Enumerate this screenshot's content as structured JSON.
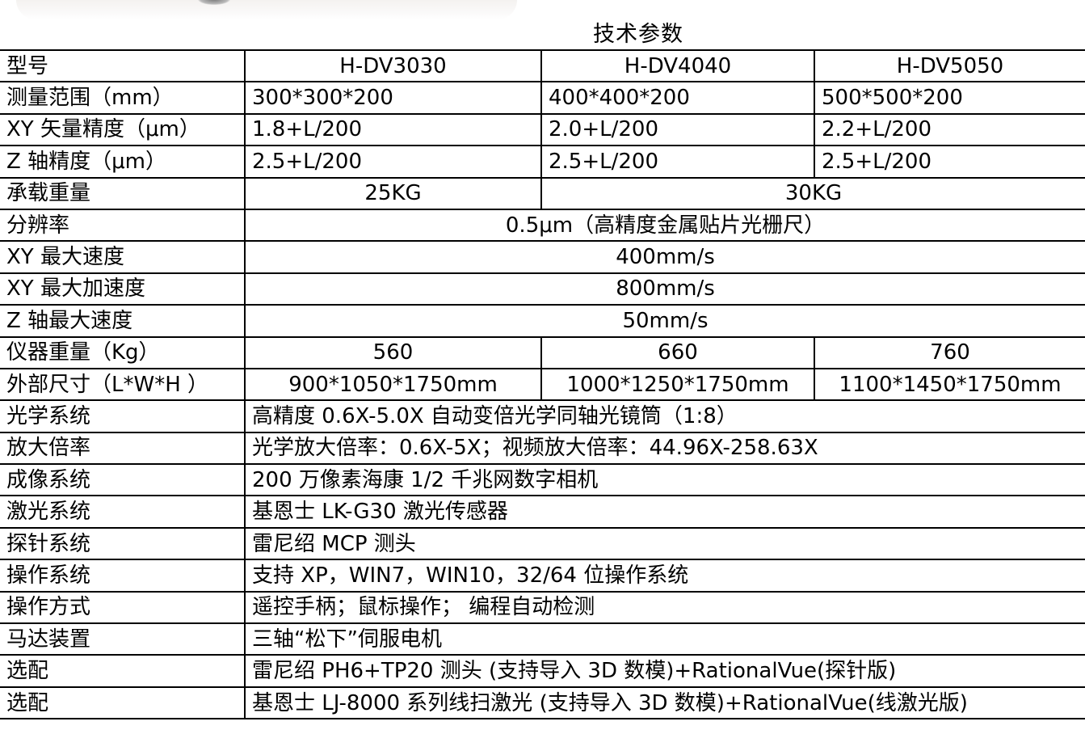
{
  "title": "技术参数",
  "header": {
    "label": "型号",
    "models": [
      "H-DV3030",
      "H-DV4040",
      "H-DV5050"
    ]
  },
  "rows3": [
    {
      "label": "测量范围（mm）",
      "values": [
        "300*300*200",
        "400*400*200",
        "500*500*200"
      ],
      "align": "left"
    },
    {
      "label": "XY 矢量精度（μm）",
      "values": [
        "1.8+L/200",
        "2.0+L/200",
        "2.2+L/200"
      ],
      "align": "left"
    },
    {
      "label": "Z 轴精度（μm）",
      "values": [
        "2.5+L/200",
        "2.5+L/200",
        "2.5+L/200"
      ],
      "align": "left"
    }
  ],
  "load": {
    "label": "承载重量",
    "values": [
      "25KG",
      "30KG"
    ]
  },
  "span_rows": [
    {
      "label": "分辨率",
      "value": "0.5μm（高精度金属贴片光栅尺）"
    },
    {
      "label": "XY 最大速度",
      "value": "400mm/s"
    },
    {
      "label": "XY 最大加速度",
      "value": "800mm/s"
    },
    {
      "label": "Z 轴最大速度",
      "value": "50mm/s"
    }
  ],
  "rows3b": [
    {
      "label": "仪器重量（Kg）",
      "values": [
        "560",
        "660",
        "760"
      ]
    },
    {
      "label": "外部尺寸（L*W*H ）",
      "values": [
        "900*1050*1750mm",
        "1000*1250*1750mm",
        "1100*1450*1750mm"
      ]
    }
  ],
  "left_rows": [
    {
      "label": "光学系统",
      "value": "高精度 0.6X-5.0X 自动变倍光学同轴光镜筒（1:8）"
    },
    {
      "label": "放大倍率",
      "value": "光学放大倍率：0.6X-5X；视频放大倍率：44.96X-258.63X"
    },
    {
      "label": "成像系统",
      "value": "200 万像素海康 1/2 千兆网数字相机"
    },
    {
      "label": "激光系统",
      "value": "基恩士 LK-G30 激光传感器"
    },
    {
      "label": "探针系统",
      "value": "雷尼绍 MCP 测头"
    },
    {
      "label": "操作系统",
      "value": "支持 XP，WIN7，WIN10，32/64 位操作系统"
    },
    {
      "label": "操作方式",
      "value": "遥控手柄；鼠标操作； 编程自动检测"
    },
    {
      "label": "马达装置",
      "value": "三轴“松下”伺服电机"
    },
    {
      "label": "选配",
      "value": "雷尼绍 PH6+TP20 测头 (支持导入 3D 数模)+RationalVue(探针版)"
    },
    {
      "label": "选配",
      "value": "基恩士 LJ-8000 系列线扫激光 (支持导入 3D 数模)+RationalVue(线激光版)"
    }
  ]
}
